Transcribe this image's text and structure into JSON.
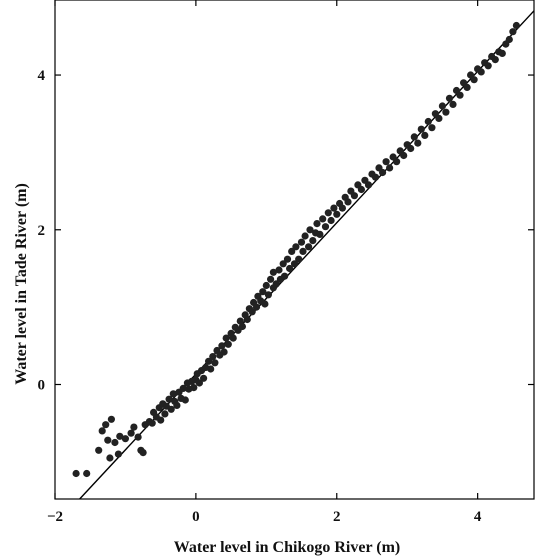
{
  "chart_data": {
    "type": "scatter",
    "title": "",
    "xlabel": "Water level in Chikogo River (m)",
    "ylabel": "Water level in Tade River (m)",
    "xlim": [
      -2.0,
      4.8
    ],
    "ylim": [
      -1.48,
      4.97
    ],
    "xticks": [
      {
        "value": -2,
        "label": "−2"
      },
      {
        "value": 0,
        "label": "0"
      },
      {
        "value": 2,
        "label": "2"
      },
      {
        "value": 4,
        "label": "4"
      }
    ],
    "yticks": [
      {
        "value": 0,
        "label": "0"
      },
      {
        "value": 2,
        "label": "2"
      },
      {
        "value": 4,
        "label": "4"
      }
    ],
    "grid": false,
    "legend": "none",
    "marker_color": "#222222",
    "line_color": "#000000",
    "fit_line": {
      "x": [
        -1.65,
        4.8
      ],
      "y": [
        -1.48,
        4.83
      ]
    },
    "series": [
      {
        "points": [
          [
            -1.7,
            -1.15
          ],
          [
            -1.55,
            -1.15
          ],
          [
            -1.38,
            -0.85
          ],
          [
            -1.33,
            -0.6
          ],
          [
            -1.28,
            -0.52
          ],
          [
            -1.25,
            -0.72
          ],
          [
            -1.22,
            -0.95
          ],
          [
            -1.2,
            -0.45
          ],
          [
            -1.15,
            -0.75
          ],
          [
            -1.1,
            -0.9
          ],
          [
            -1.08,
            -0.67
          ],
          [
            -1.0,
            -0.7
          ],
          [
            -0.92,
            -0.63
          ],
          [
            -0.88,
            -0.55
          ],
          [
            -0.82,
            -0.68
          ],
          [
            -0.78,
            -0.85
          ],
          [
            -0.75,
            -0.88
          ],
          [
            -0.72,
            -0.52
          ],
          [
            -0.66,
            -0.48
          ],
          [
            -0.62,
            -0.5
          ],
          [
            -0.6,
            -0.36
          ],
          [
            -0.56,
            -0.42
          ],
          [
            -0.52,
            -0.3
          ],
          [
            -0.5,
            -0.46
          ],
          [
            -0.47,
            -0.25
          ],
          [
            -0.44,
            -0.38
          ],
          [
            -0.42,
            -0.28
          ],
          [
            -0.38,
            -0.19
          ],
          [
            -0.35,
            -0.32
          ],
          [
            -0.32,
            -0.12
          ],
          [
            -0.3,
            -0.22
          ],
          [
            -0.27,
            -0.27
          ],
          [
            -0.24,
            -0.1
          ],
          [
            -0.21,
            -0.18
          ],
          [
            -0.18,
            -0.05
          ],
          [
            -0.15,
            -0.2
          ],
          [
            -0.12,
            0.02
          ],
          [
            -0.1,
            -0.06
          ],
          [
            -0.06,
            0.04
          ],
          [
            -0.03,
            -0.04
          ],
          [
            0.0,
            0.06
          ],
          [
            0.02,
            0.14
          ],
          [
            0.05,
            0.02
          ],
          [
            0.08,
            0.18
          ],
          [
            0.11,
            0.08
          ],
          [
            0.14,
            0.22
          ],
          [
            0.18,
            0.3
          ],
          [
            0.21,
            0.2
          ],
          [
            0.24,
            0.36
          ],
          [
            0.27,
            0.28
          ],
          [
            0.3,
            0.44
          ],
          [
            0.34,
            0.38
          ],
          [
            0.37,
            0.5
          ],
          [
            0.4,
            0.42
          ],
          [
            0.43,
            0.6
          ],
          [
            0.46,
            0.52
          ],
          [
            0.5,
            0.66
          ],
          [
            0.53,
            0.6
          ],
          [
            0.56,
            0.74
          ],
          [
            0.6,
            0.7
          ],
          [
            0.63,
            0.82
          ],
          [
            0.66,
            0.75
          ],
          [
            0.7,
            0.9
          ],
          [
            0.73,
            0.84
          ],
          [
            0.76,
            0.98
          ],
          [
            0.8,
            0.94
          ],
          [
            0.82,
            1.06
          ],
          [
            0.86,
            1.0
          ],
          [
            0.88,
            1.14
          ],
          [
            0.92,
            1.08
          ],
          [
            0.95,
            1.2
          ],
          [
            0.98,
            1.04
          ],
          [
            1.0,
            1.28
          ],
          [
            1.03,
            1.16
          ],
          [
            1.06,
            1.36
          ],
          [
            1.1,
            1.25
          ],
          [
            1.1,
            1.45
          ],
          [
            1.14,
            1.3
          ],
          [
            1.18,
            1.48
          ],
          [
            1.2,
            1.36
          ],
          [
            1.24,
            1.56
          ],
          [
            1.26,
            1.4
          ],
          [
            1.3,
            1.62
          ],
          [
            1.33,
            1.5
          ],
          [
            1.36,
            1.72
          ],
          [
            1.4,
            1.56
          ],
          [
            1.42,
            1.78
          ],
          [
            1.46,
            1.62
          ],
          [
            1.5,
            1.84
          ],
          [
            1.52,
            1.72
          ],
          [
            1.55,
            1.92
          ],
          [
            1.6,
            1.78
          ],
          [
            1.62,
            2.0
          ],
          [
            1.66,
            1.86
          ],
          [
            1.7,
            1.96
          ],
          [
            1.72,
            2.08
          ],
          [
            1.76,
            1.94
          ],
          [
            1.8,
            2.14
          ],
          [
            1.84,
            2.04
          ],
          [
            1.88,
            2.22
          ],
          [
            1.92,
            2.12
          ],
          [
            1.96,
            2.28
          ],
          [
            2.0,
            2.2
          ],
          [
            2.04,
            2.34
          ],
          [
            2.08,
            2.28
          ],
          [
            2.12,
            2.42
          ],
          [
            2.16,
            2.36
          ],
          [
            2.2,
            2.5
          ],
          [
            2.25,
            2.44
          ],
          [
            2.3,
            2.58
          ],
          [
            2.35,
            2.52
          ],
          [
            2.4,
            2.64
          ],
          [
            2.45,
            2.58
          ],
          [
            2.5,
            2.72
          ],
          [
            2.55,
            2.68
          ],
          [
            2.6,
            2.8
          ],
          [
            2.65,
            2.74
          ],
          [
            2.7,
            2.88
          ],
          [
            2.75,
            2.8
          ],
          [
            2.8,
            2.94
          ],
          [
            2.85,
            2.88
          ],
          [
            2.9,
            3.02
          ],
          [
            2.95,
            2.96
          ],
          [
            3.0,
            3.1
          ],
          [
            3.05,
            3.05
          ],
          [
            3.1,
            3.2
          ],
          [
            3.15,
            3.12
          ],
          [
            3.2,
            3.3
          ],
          [
            3.25,
            3.22
          ],
          [
            3.3,
            3.4
          ],
          [
            3.35,
            3.32
          ],
          [
            3.4,
            3.5
          ],
          [
            3.45,
            3.44
          ],
          [
            3.5,
            3.6
          ],
          [
            3.55,
            3.52
          ],
          [
            3.6,
            3.7
          ],
          [
            3.65,
            3.62
          ],
          [
            3.7,
            3.8
          ],
          [
            3.75,
            3.74
          ],
          [
            3.8,
            3.9
          ],
          [
            3.85,
            3.84
          ],
          [
            3.9,
            4.0
          ],
          [
            3.95,
            3.94
          ],
          [
            4.0,
            4.08
          ],
          [
            4.05,
            4.04
          ],
          [
            4.1,
            4.16
          ],
          [
            4.15,
            4.12
          ],
          [
            4.2,
            4.24
          ],
          [
            4.25,
            4.2
          ],
          [
            4.3,
            4.3
          ],
          [
            4.35,
            4.28
          ],
          [
            4.4,
            4.4
          ],
          [
            4.45,
            4.46
          ],
          [
            4.5,
            4.56
          ],
          [
            4.55,
            4.64
          ]
        ]
      }
    ]
  }
}
